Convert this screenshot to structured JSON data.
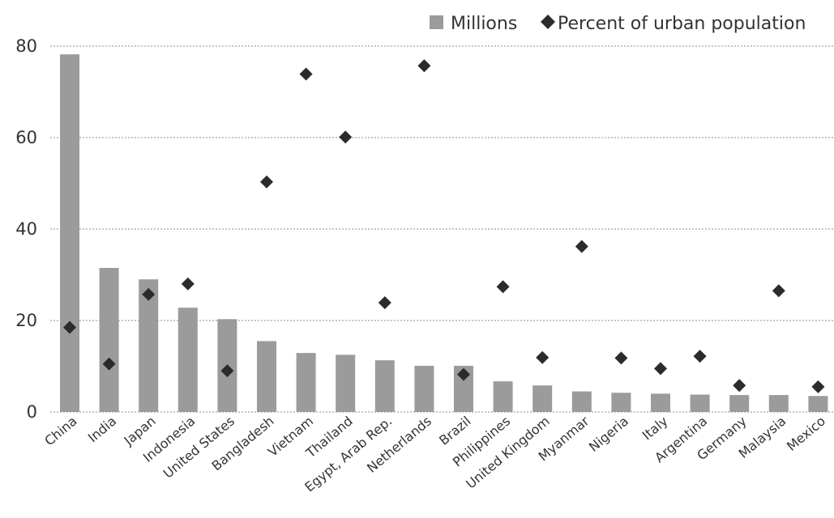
{
  "chart_data": {
    "type": "bar",
    "categories": [
      "China",
      "India",
      "Japan",
      "Indonesia",
      "United States",
      "Bangladesh",
      "Vietnam",
      "Thailand",
      "Egypt, Arab Rep.",
      "Netherlands",
      "Brazil",
      "Philippines",
      "United Kingdom",
      "Myanmar",
      "Nigeria",
      "Italy",
      "Argentina",
      "Germany",
      "Malaysia",
      "Mexico"
    ],
    "series": [
      {
        "name": "Millions",
        "kind": "bar",
        "color": "#9b9b9b",
        "values": [
          78.2,
          31.5,
          29.0,
          22.8,
          20.3,
          15.5,
          12.9,
          12.5,
          11.3,
          10.1,
          10.1,
          6.7,
          5.8,
          4.5,
          4.2,
          4.0,
          3.8,
          3.7,
          3.7,
          3.5
        ]
      },
      {
        "name": "Percent of urban population",
        "kind": "scatter",
        "marker": "diamond",
        "color": "#2b2b2b",
        "values": [
          18.5,
          10.5,
          25.7,
          28.0,
          9.0,
          50.3,
          73.9,
          60.1,
          23.9,
          75.7,
          8.2,
          27.4,
          11.9,
          36.2,
          11.8,
          9.5,
          12.2,
          5.8,
          26.5,
          5.5
        ]
      }
    ],
    "title": "",
    "xlabel": "",
    "ylabel": "",
    "ylim": [
      0,
      80
    ],
    "yticks": [
      0,
      20,
      40,
      60,
      80
    ],
    "grid": true,
    "legend_position": "top-right"
  }
}
